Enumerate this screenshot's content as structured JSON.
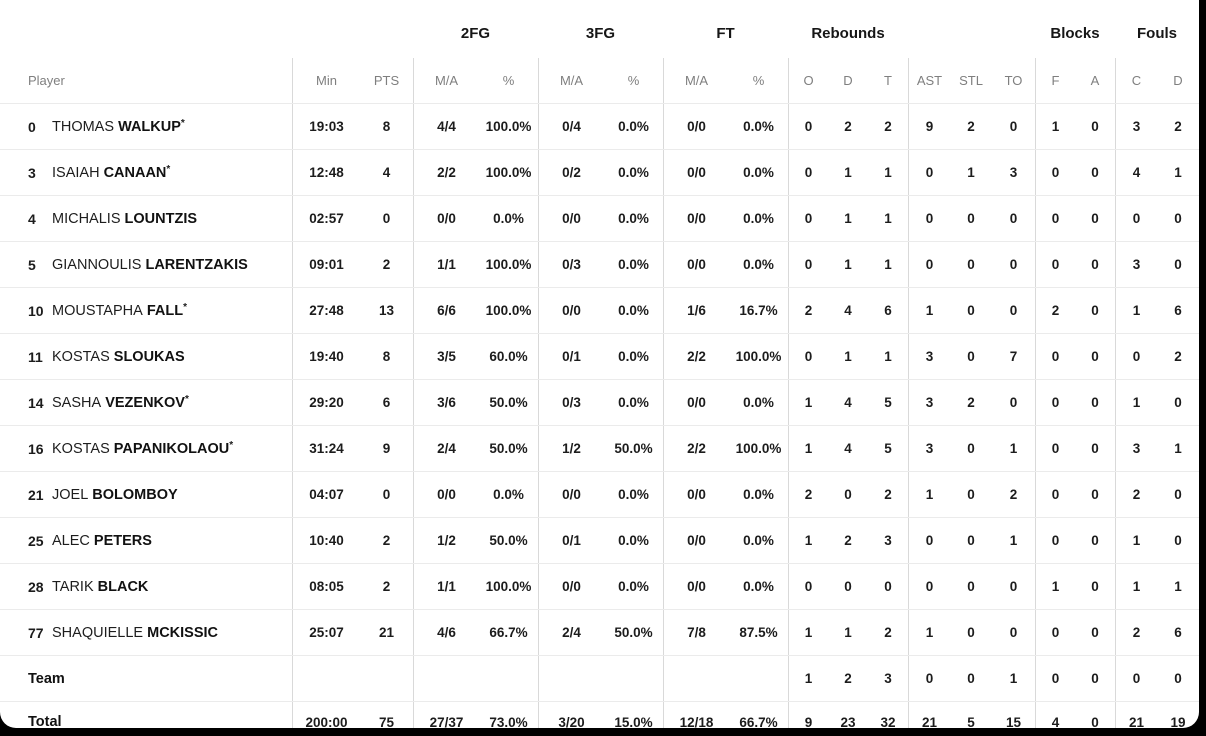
{
  "header": {
    "groups": {
      "fg2": "2FG",
      "fg3": "3FG",
      "ft": "FT",
      "rebounds": "Rebounds",
      "blocks": "Blocks",
      "fouls": "Fouls"
    },
    "cols": {
      "player": "Player",
      "min": "Min",
      "pts": "PTS",
      "ma": "M/A",
      "pct": "%",
      "o": "O",
      "d": "D",
      "t": "T",
      "ast": "AST",
      "stl": "STL",
      "to": "TO",
      "f": "F",
      "a": "A",
      "c": "C",
      "dd": "D"
    }
  },
  "rows": [
    {
      "number": "0",
      "first": "THOMAS",
      "last": "WALKUP",
      "star": "*",
      "min": "19:03",
      "pts": "8",
      "fg2_ma": "4/4",
      "fg2_pct": "100.0%",
      "fg3_ma": "0/4",
      "fg3_pct": "0.0%",
      "ft_ma": "0/0",
      "ft_pct": "0.0%",
      "reb_o": "0",
      "reb_d": "2",
      "reb_t": "2",
      "ast": "9",
      "stl": "2",
      "to": "0",
      "blk_f": "1",
      "blk_a": "0",
      "foul_c": "3",
      "foul_d": "2"
    },
    {
      "number": "3",
      "first": "ISAIAH",
      "last": "CANAAN",
      "star": "*",
      "min": "12:48",
      "pts": "4",
      "fg2_ma": "2/2",
      "fg2_pct": "100.0%",
      "fg3_ma": "0/2",
      "fg3_pct": "0.0%",
      "ft_ma": "0/0",
      "ft_pct": "0.0%",
      "reb_o": "0",
      "reb_d": "1",
      "reb_t": "1",
      "ast": "0",
      "stl": "1",
      "to": "3",
      "blk_f": "0",
      "blk_a": "0",
      "foul_c": "4",
      "foul_d": "1"
    },
    {
      "number": "4",
      "first": "MICHALIS",
      "last": "LOUNTZIS",
      "star": "",
      "min": "02:57",
      "pts": "0",
      "fg2_ma": "0/0",
      "fg2_pct": "0.0%",
      "fg3_ma": "0/0",
      "fg3_pct": "0.0%",
      "ft_ma": "0/0",
      "ft_pct": "0.0%",
      "reb_o": "0",
      "reb_d": "1",
      "reb_t": "1",
      "ast": "0",
      "stl": "0",
      "to": "0",
      "blk_f": "0",
      "blk_a": "0",
      "foul_c": "0",
      "foul_d": "0"
    },
    {
      "number": "5",
      "first": "GIANNOULIS",
      "last": "LARENTZAKIS",
      "star": "",
      "min": "09:01",
      "pts": "2",
      "fg2_ma": "1/1",
      "fg2_pct": "100.0%",
      "fg3_ma": "0/3",
      "fg3_pct": "0.0%",
      "ft_ma": "0/0",
      "ft_pct": "0.0%",
      "reb_o": "0",
      "reb_d": "1",
      "reb_t": "1",
      "ast": "0",
      "stl": "0",
      "to": "0",
      "blk_f": "0",
      "blk_a": "0",
      "foul_c": "3",
      "foul_d": "0"
    },
    {
      "number": "10",
      "first": "MOUSTAPHA",
      "last": "FALL",
      "star": "*",
      "min": "27:48",
      "pts": "13",
      "fg2_ma": "6/6",
      "fg2_pct": "100.0%",
      "fg3_ma": "0/0",
      "fg3_pct": "0.0%",
      "ft_ma": "1/6",
      "ft_pct": "16.7%",
      "reb_o": "2",
      "reb_d": "4",
      "reb_t": "6",
      "ast": "1",
      "stl": "0",
      "to": "0",
      "blk_f": "2",
      "blk_a": "0",
      "foul_c": "1",
      "foul_d": "6"
    },
    {
      "number": "11",
      "first": "KOSTAS",
      "last": "SLOUKAS",
      "star": "",
      "min": "19:40",
      "pts": "8",
      "fg2_ma": "3/5",
      "fg2_pct": "60.0%",
      "fg3_ma": "0/1",
      "fg3_pct": "0.0%",
      "ft_ma": "2/2",
      "ft_pct": "100.0%",
      "reb_o": "0",
      "reb_d": "1",
      "reb_t": "1",
      "ast": "3",
      "stl": "0",
      "to": "7",
      "blk_f": "0",
      "blk_a": "0",
      "foul_c": "0",
      "foul_d": "2"
    },
    {
      "number": "14",
      "first": "SASHA",
      "last": "VEZENKOV",
      "star": "*",
      "min": "29:20",
      "pts": "6",
      "fg2_ma": "3/6",
      "fg2_pct": "50.0%",
      "fg3_ma": "0/3",
      "fg3_pct": "0.0%",
      "ft_ma": "0/0",
      "ft_pct": "0.0%",
      "reb_o": "1",
      "reb_d": "4",
      "reb_t": "5",
      "ast": "3",
      "stl": "2",
      "to": "0",
      "blk_f": "0",
      "blk_a": "0",
      "foul_c": "1",
      "foul_d": "0"
    },
    {
      "number": "16",
      "first": "KOSTAS",
      "last": "PAPANIKOLAOU",
      "star": "*",
      "min": "31:24",
      "pts": "9",
      "fg2_ma": "2/4",
      "fg2_pct": "50.0%",
      "fg3_ma": "1/2",
      "fg3_pct": "50.0%",
      "ft_ma": "2/2",
      "ft_pct": "100.0%",
      "reb_o": "1",
      "reb_d": "4",
      "reb_t": "5",
      "ast": "3",
      "stl": "0",
      "to": "1",
      "blk_f": "0",
      "blk_a": "0",
      "foul_c": "3",
      "foul_d": "1"
    },
    {
      "number": "21",
      "first": "JOEL",
      "last": "BOLOMBOY",
      "star": "",
      "min": "04:07",
      "pts": "0",
      "fg2_ma": "0/0",
      "fg2_pct": "0.0%",
      "fg3_ma": "0/0",
      "fg3_pct": "0.0%",
      "ft_ma": "0/0",
      "ft_pct": "0.0%",
      "reb_o": "2",
      "reb_d": "0",
      "reb_t": "2",
      "ast": "1",
      "stl": "0",
      "to": "2",
      "blk_f": "0",
      "blk_a": "0",
      "foul_c": "2",
      "foul_d": "0"
    },
    {
      "number": "25",
      "first": "ALEC",
      "last": "PETERS",
      "star": "",
      "min": "10:40",
      "pts": "2",
      "fg2_ma": "1/2",
      "fg2_pct": "50.0%",
      "fg3_ma": "0/1",
      "fg3_pct": "0.0%",
      "ft_ma": "0/0",
      "ft_pct": "0.0%",
      "reb_o": "1",
      "reb_d": "2",
      "reb_t": "3",
      "ast": "0",
      "stl": "0",
      "to": "1",
      "blk_f": "0",
      "blk_a": "0",
      "foul_c": "1",
      "foul_d": "0"
    },
    {
      "number": "28",
      "first": "TARIK",
      "last": "BLACK",
      "star": "",
      "min": "08:05",
      "pts": "2",
      "fg2_ma": "1/1",
      "fg2_pct": "100.0%",
      "fg3_ma": "0/0",
      "fg3_pct": "0.0%",
      "ft_ma": "0/0",
      "ft_pct": "0.0%",
      "reb_o": "0",
      "reb_d": "0",
      "reb_t": "0",
      "ast": "0",
      "stl": "0",
      "to": "0",
      "blk_f": "1",
      "blk_a": "0",
      "foul_c": "1",
      "foul_d": "1"
    },
    {
      "number": "77",
      "first": "SHAQUIELLE",
      "last": "MCKISSIC",
      "star": "",
      "min": "25:07",
      "pts": "21",
      "fg2_ma": "4/6",
      "fg2_pct": "66.7%",
      "fg3_ma": "2/4",
      "fg3_pct": "50.0%",
      "ft_ma": "7/8",
      "ft_pct": "87.5%",
      "reb_o": "1",
      "reb_d": "1",
      "reb_t": "2",
      "ast": "1",
      "stl": "0",
      "to": "0",
      "blk_f": "0",
      "blk_a": "0",
      "foul_c": "2",
      "foul_d": "6"
    }
  ],
  "team": {
    "label": "Team",
    "reb_o": "1",
    "reb_d": "2",
    "reb_t": "3",
    "ast": "0",
    "stl": "0",
    "to": "1",
    "blk_f": "0",
    "blk_a": "0",
    "foul_c": "0",
    "foul_d": "0"
  },
  "total": {
    "label": "Total",
    "min": "200:00",
    "pts": "75",
    "fg2_ma": "27/37",
    "fg2_pct": "73.0%",
    "fg3_ma": "3/20",
    "fg3_pct": "15.0%",
    "ft_ma": "12/18",
    "ft_pct": "66.7%",
    "reb_o": "9",
    "reb_d": "23",
    "reb_t": "32",
    "ast": "21",
    "stl": "5",
    "to": "15",
    "blk_f": "4",
    "blk_a": "0",
    "foul_c": "21",
    "foul_d": "19"
  }
}
